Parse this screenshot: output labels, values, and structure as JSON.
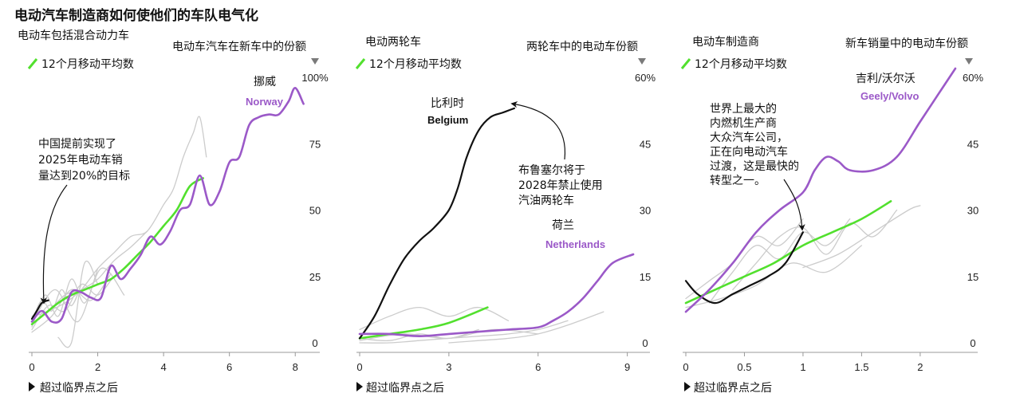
{
  "figure": {
    "title": "电动汽车制造商如何使他们的车队电气化",
    "legend_label": "12个月移动平均数",
    "x_label": "超过临界点之后",
    "colors": {
      "highlight": "#9b59c8",
      "black": "#111111",
      "green": "#52e02e",
      "gray": "#cccccc",
      "axis": "#999999"
    }
  },
  "chart_data": [
    {
      "type": "line",
      "subtitle": "电动车包括混合动力车",
      "value_label": "电动车汽车在新车中的份额",
      "xlim": [
        0,
        8.6
      ],
      "ylim": [
        0,
        100
      ],
      "x_ticks": [
        0,
        2,
        4,
        6,
        8
      ],
      "y_ticks": [
        0,
        25,
        50,
        75,
        100
      ],
      "y_tick_labels": [
        "0",
        "25",
        "50",
        "75",
        "100%"
      ],
      "series": [
        {
          "name": "Norway",
          "label_cn": "挪威",
          "role": "highlight",
          "x": [
            0,
            0.3,
            0.6,
            0.9,
            1.2,
            1.5,
            1.8,
            2.1,
            2.4,
            2.7,
            3.0,
            3.3,
            3.6,
            3.9,
            4.2,
            4.5,
            4.8,
            5.1,
            5.4,
            5.7,
            6.0,
            6.3,
            6.6,
            6.9,
            7.2,
            7.5,
            7.8,
            8.0,
            8.25
          ],
          "y": [
            8,
            12,
            8,
            9,
            19,
            19,
            17,
            17,
            29,
            24,
            28,
            33,
            40,
            37,
            42,
            50,
            52,
            63,
            52,
            57,
            68,
            70,
            82,
            85,
            86,
            86,
            91,
            96,
            90
          ]
        },
        {
          "name": "China",
          "role": "black",
          "x": [
            0,
            0.15,
            0.3,
            0.5
          ],
          "y": [
            9,
            12,
            15,
            16
          ]
        },
        {
          "name": "Green 12-month average",
          "role": "green",
          "x": [
            0,
            0.4,
            0.8,
            1.2,
            1.6,
            2.0,
            2.4,
            2.8,
            3.2,
            3.6,
            4.0,
            4.4,
            4.8,
            5.2
          ],
          "y": [
            7,
            11,
            15,
            18,
            20,
            22,
            24,
            28,
            33,
            38,
            44,
            50,
            59,
            62
          ]
        },
        {
          "role": "gray",
          "x": [
            0,
            0.5,
            1,
            1.5,
            2,
            2.5,
            3
          ],
          "y": [
            5,
            14,
            12,
            22,
            18,
            25,
            30
          ]
        },
        {
          "role": "gray",
          "x": [
            0,
            0.4,
            0.8,
            1.2,
            1.6,
            2.0
          ],
          "y": [
            6,
            18,
            10,
            24,
            15,
            28
          ]
        },
        {
          "role": "gray",
          "x": [
            0,
            0.6,
            1.2,
            1.8,
            2.4
          ],
          "y": [
            4,
            10,
            20,
            16,
            26
          ]
        },
        {
          "role": "gray",
          "x": [
            0,
            0.5,
            1.0,
            1.5,
            2.0,
            2.5,
            3.0,
            3.5
          ],
          "y": [
            10,
            12,
            18,
            20,
            24,
            31,
            36,
            42
          ]
        },
        {
          "role": "gray",
          "x": [
            0,
            0.3,
            0.6,
            0.9,
            1.2,
            1.5
          ],
          "y": [
            8,
            16,
            12,
            20,
            14,
            22
          ]
        },
        {
          "role": "gray",
          "x": [
            0.5,
            1,
            1.5,
            2,
            2.5,
            3,
            3.5,
            4,
            4.3,
            4.6,
            4.9,
            5.1,
            5.3
          ],
          "y": [
            12,
            15,
            20,
            28,
            34,
            40,
            42,
            52,
            58,
            70,
            79,
            85,
            70
          ]
        },
        {
          "role": "gray",
          "x": [
            0.8,
            1.2,
            1.6,
            2.0
          ],
          "y": [
            2,
            0,
            30,
            22
          ]
        },
        {
          "role": "gray",
          "x": [
            0,
            0.7,
            1.4,
            2.1,
            2.8
          ],
          "y": [
            7,
            20,
            8,
            28,
            18
          ]
        }
      ],
      "annotations": [
        {
          "text": "中国提前实现了\n2025年电动车销\n量达到20%的目标"
        }
      ]
    },
    {
      "type": "line",
      "subtitle": "电动两轮车",
      "value_label": "两轮车中的电动车份额",
      "xlim": [
        0,
        9.6
      ],
      "ylim": [
        0,
        60
      ],
      "x_ticks": [
        0,
        3,
        6,
        9
      ],
      "y_ticks": [
        0,
        15,
        30,
        45,
        60
      ],
      "y_tick_labels": [
        "0",
        "15",
        "30",
        "45",
        "60%"
      ],
      "series": [
        {
          "name": "Belgium",
          "label_cn": "比利时",
          "role": "black",
          "x": [
            0,
            0.5,
            1.0,
            1.5,
            2.0,
            2.5,
            3.0,
            3.3,
            3.6,
            4.0,
            4.4,
            4.8,
            5.2
          ],
          "y": [
            1,
            6,
            13,
            19,
            23,
            26,
            30,
            35,
            42,
            48,
            51,
            52,
            53
          ]
        },
        {
          "name": "Netherlands",
          "label_cn": "荷兰",
          "role": "highlight",
          "x": [
            0,
            1,
            2,
            3,
            4,
            5,
            6,
            6.5,
            7,
            7.5,
            8,
            8.5,
            9.2
          ],
          "y": [
            2,
            2,
            1.5,
            2,
            2.5,
            3,
            3.5,
            5,
            7,
            10,
            14,
            18,
            20
          ]
        },
        {
          "name": "Green 12-month average",
          "role": "green",
          "x": [
            0,
            1,
            2,
            3,
            4.3
          ],
          "y": [
            1,
            2,
            3,
            4.5,
            8
          ]
        },
        {
          "role": "gray",
          "x": [
            0,
            1,
            2,
            3,
            4,
            5
          ],
          "y": [
            3,
            6,
            8,
            6,
            8,
            5
          ]
        },
        {
          "role": "gray",
          "x": [
            0,
            1,
            2,
            3,
            4
          ],
          "y": [
            1,
            0.5,
            2,
            1,
            3
          ]
        },
        {
          "role": "gray",
          "x": [
            0,
            1.5,
            3,
            4.5,
            6
          ],
          "y": [
            0.5,
            2,
            1,
            3,
            2
          ]
        },
        {
          "role": "gray",
          "x": [
            3,
            4,
            5,
            6,
            7,
            8.2
          ],
          "y": [
            0,
            0.5,
            1,
            2,
            4,
            7
          ]
        },
        {
          "role": "gray",
          "x": [
            0,
            1,
            2,
            3,
            4,
            5,
            6,
            7
          ],
          "y": [
            0,
            0,
            0.5,
            1,
            1.5,
            2,
            3,
            5
          ]
        }
      ],
      "annotations": [
        {
          "text": "布鲁塞尔将于\n2028年禁止使用\n汽油两轮车"
        }
      ]
    },
    {
      "type": "line",
      "subtitle": "电动车制造商",
      "value_label": "新车销量中的电动车份额",
      "xlim": [
        0,
        2.45
      ],
      "ylim": [
        0,
        60
      ],
      "x_ticks": [
        0,
        0.5,
        1,
        1.5,
        2
      ],
      "x_tick_labels": [
        "0",
        "0.5",
        "1",
        "1.5",
        "2"
      ],
      "y_ticks": [
        0,
        15,
        30,
        45,
        60
      ],
      "y_tick_labels": [
        "0",
        "15",
        "30",
        "45",
        "60%"
      ],
      "series": [
        {
          "name": "Geely/Volvo",
          "label_cn": "吉利/沃尔沃",
          "role": "highlight",
          "x": [
            0,
            0.2,
            0.4,
            0.6,
            0.8,
            1.0,
            1.1,
            1.2,
            1.3,
            1.4,
            1.6,
            1.8,
            2.0,
            2.15,
            2.3
          ],
          "y": [
            7,
            12,
            18,
            25,
            30,
            34,
            39,
            42,
            41,
            39,
            39,
            42,
            50,
            56,
            62
          ]
        },
        {
          "name": "大众汽车",
          "role": "black",
          "x": [
            0,
            0.1,
            0.25,
            0.4,
            0.55,
            0.7,
            0.85,
            1.0
          ],
          "y": [
            14,
            11,
            9,
            11,
            13,
            15,
            18,
            25
          ]
        },
        {
          "name": "Green 12-month average",
          "role": "green",
          "x": [
            0,
            0.25,
            0.5,
            0.75,
            1.0,
            1.25,
            1.5,
            1.75
          ],
          "y": [
            9,
            12,
            15,
            18,
            22,
            25,
            28,
            32
          ]
        },
        {
          "role": "gray",
          "x": [
            0,
            0.2,
            0.4,
            0.6,
            0.8,
            1.0
          ],
          "y": [
            10,
            14,
            18,
            24,
            22,
            28
          ]
        },
        {
          "role": "gray",
          "x": [
            0.2,
            0.4,
            0.6,
            0.8,
            1.0,
            1.2,
            1.4
          ],
          "y": [
            9,
            16,
            22,
            19,
            25,
            22,
            28
          ]
        },
        {
          "role": "gray",
          "x": [
            0.4,
            0.6,
            0.8,
            1.0,
            1.2,
            1.4,
            1.6,
            1.8
          ],
          "y": [
            12,
            18,
            24,
            26,
            20,
            27,
            24,
            30
          ]
        },
        {
          "role": "gray",
          "x": [
            0,
            0.3,
            0.6,
            0.9,
            1.2,
            1.5
          ],
          "y": [
            8,
            10,
            13,
            18,
            16,
            22
          ]
        },
        {
          "role": "gray",
          "x": [
            1.0,
            1.3,
            1.6,
            1.9,
            2.0
          ],
          "y": [
            17,
            20,
            25,
            30,
            31
          ]
        }
      ],
      "annotations": [
        {
          "text": "世界上最大的\n内燃机生产商\n大众汽车公司，\n正在向电动汽车\n过渡，这是最快的\n转型之一。"
        }
      ]
    }
  ]
}
